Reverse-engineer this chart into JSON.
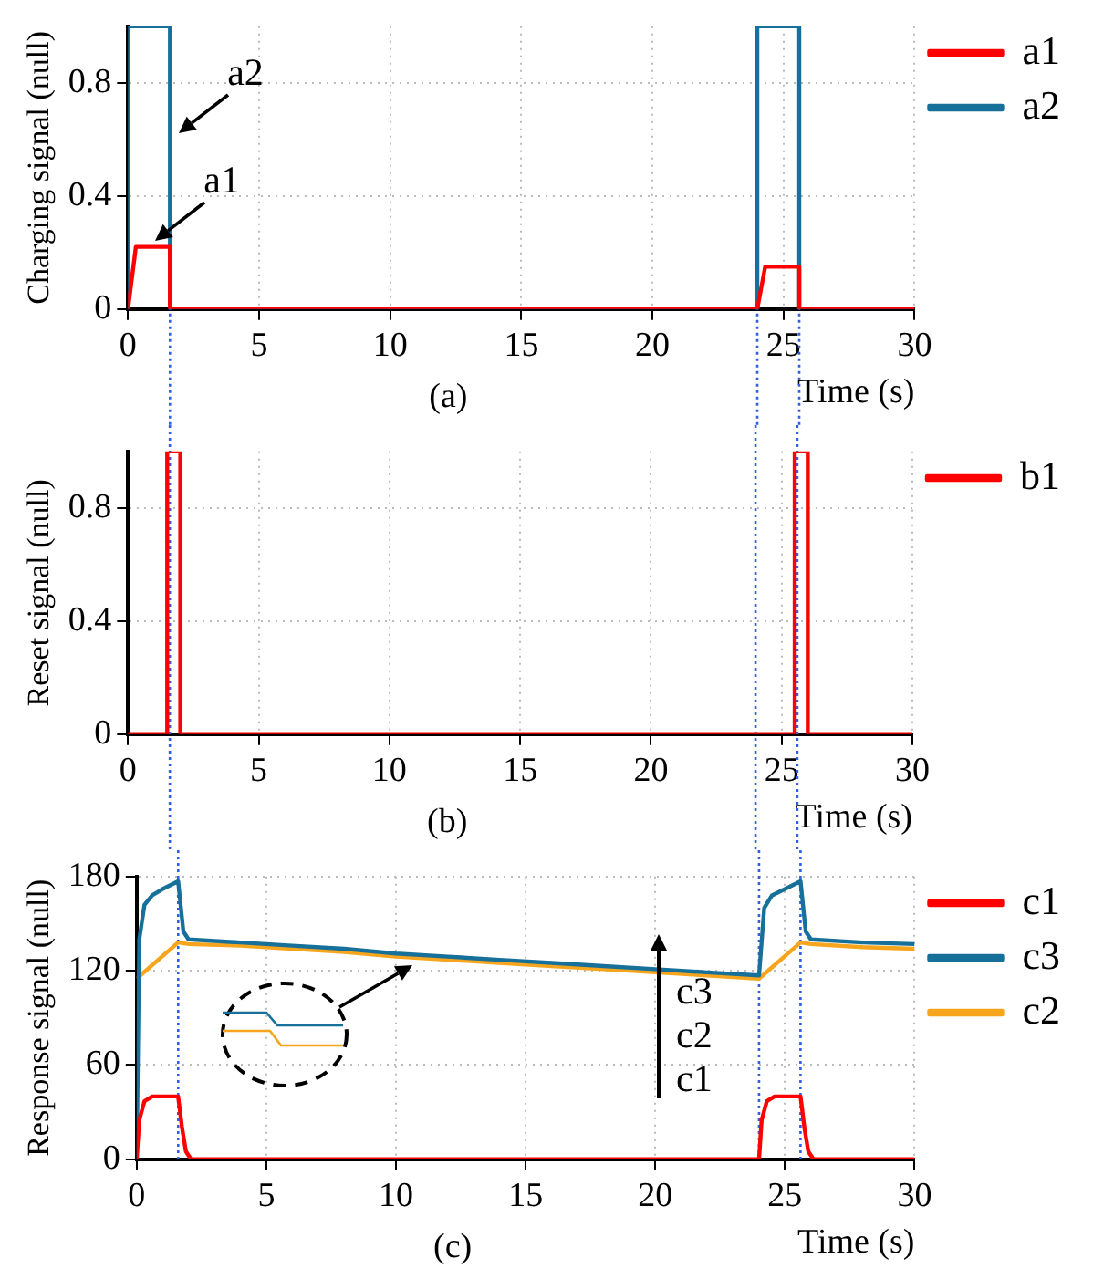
{
  "chart_data": [
    {
      "type": "line",
      "xlabel": "Time (s)",
      "ylabel": "Charging signal (null)",
      "xlim": [
        0,
        30
      ],
      "xticks": [
        0,
        5,
        10,
        15,
        20,
        25,
        30
      ],
      "ylim": [
        0,
        1
      ],
      "yticks": [
        0,
        0.4,
        0.8
      ],
      "grid": true,
      "legend": "top right",
      "series": [
        {
          "name": "a1",
          "color": "#ff0000",
          "x": [
            0,
            0.3,
            1.6,
            1.6,
            24,
            24.3,
            25.6,
            25.6,
            30
          ],
          "values": [
            0,
            0.22,
            0.22,
            0,
            0,
            0.15,
            0.15,
            0,
            0
          ]
        },
        {
          "name": "a2",
          "color": "#16709a",
          "x": [
            0,
            0,
            1.6,
            1.6,
            24,
            24,
            25.6,
            25.6,
            30
          ],
          "values": [
            0,
            1,
            1,
            0,
            0,
            1,
            1,
            0,
            0
          ]
        }
      ],
      "ref_lines": [
        {
          "axis": "x",
          "value": 1.6,
          "color": "#3060e0",
          "line_style": "dotted"
        },
        {
          "axis": "x",
          "value": 24,
          "color": "#3060e0",
          "line_style": "dotted"
        },
        {
          "axis": "x",
          "value": 25.6,
          "color": "#3060e0",
          "line_style": "dotted"
        }
      ],
      "annotations": [
        "(a)",
        {
          "text": "a2",
          "x": 1.7,
          "y": 0.6
        },
        {
          "text": "a1",
          "x": 0.8,
          "y": 0.22
        }
      ]
    },
    {
      "type": "line",
      "xlabel": "Time (s)",
      "ylabel": "Reset signal (null)",
      "xlim": [
        0,
        30
      ],
      "xticks": [
        0,
        5,
        10,
        15,
        20,
        25,
        30
      ],
      "ylim": [
        0,
        1
      ],
      "yticks": [
        0,
        0.4,
        0.8
      ],
      "grid": true,
      "legend": "top right",
      "series": [
        {
          "name": "b1",
          "color": "#ff0000",
          "x": [
            0,
            1.5,
            1.5,
            2.0,
            2.0,
            25.5,
            25.5,
            26.0,
            26.0,
            30
          ],
          "values": [
            0,
            0,
            1,
            1,
            0,
            0,
            1,
            1,
            0,
            0
          ]
        }
      ],
      "ref_lines": [
        {
          "axis": "x",
          "value": 1.6,
          "color": "#3060e0",
          "line_style": "dotted"
        },
        {
          "axis": "x",
          "value": 24,
          "color": "#3060e0",
          "line_style": "dotted"
        },
        {
          "axis": "x",
          "value": 25.6,
          "color": "#3060e0",
          "line_style": "dotted"
        }
      ],
      "annotations": [
        "(b)"
      ]
    },
    {
      "type": "line",
      "xlabel": "Time (s)",
      "ylabel": "Response signal (null)",
      "xlim": [
        0,
        30
      ],
      "xticks": [
        0,
        5,
        10,
        15,
        20,
        25,
        30
      ],
      "ylim": [
        0,
        180
      ],
      "yticks": [
        0,
        60,
        120,
        180
      ],
      "grid": true,
      "legend": "top right",
      "series": [
        {
          "name": "c1",
          "color": "#ff0000",
          "x": [
            0,
            0.1,
            0.3,
            0.6,
            1.6,
            1.75,
            1.9,
            2.1,
            24,
            24.1,
            24.3,
            24.6,
            25.6,
            25.75,
            25.9,
            26.1,
            30
          ],
          "values": [
            0,
            25,
            37,
            40,
            40,
            20,
            5,
            0,
            0,
            25,
            37,
            40,
            40,
            20,
            5,
            0,
            0
          ]
        },
        {
          "name": "c3",
          "color": "#16709a",
          "x": [
            0,
            0.1,
            0.3,
            0.6,
            1,
            1.6,
            1.8,
            2,
            4,
            6,
            8,
            10,
            12,
            14,
            16,
            18,
            20,
            22,
            24,
            24.2,
            24.5,
            25,
            25.6,
            25.8,
            26,
            28,
            30
          ],
          "values": [
            0,
            140,
            162,
            168,
            172,
            177,
            145,
            140,
            138,
            136,
            134,
            131,
            129,
            127,
            125,
            123,
            121,
            119,
            117,
            160,
            168,
            172,
            177,
            145,
            140,
            138,
            137
          ]
        },
        {
          "name": "c2",
          "color": "#f7a51c",
          "x": [
            0,
            1.6,
            2,
            4,
            6,
            8,
            10,
            12,
            14,
            16,
            18,
            20,
            22,
            24,
            25.6,
            26,
            28,
            30
          ],
          "values": [
            115,
            138,
            137,
            136,
            134,
            132,
            129,
            127,
            125,
            123,
            121,
            119,
            117,
            115,
            138,
            137,
            135,
            134
          ]
        }
      ],
      "ref_lines": [
        {
          "axis": "x",
          "value": 1.6,
          "color": "#3060e0",
          "line_style": "dotted"
        },
        {
          "axis": "x",
          "value": 24,
          "color": "#3060e0",
          "line_style": "dotted"
        },
        {
          "axis": "x",
          "value": 25.6,
          "color": "#3060e0",
          "line_style": "dotted"
        }
      ],
      "annotations": [
        "(c)",
        "c3",
        "c2",
        "c1"
      ]
    }
  ]
}
